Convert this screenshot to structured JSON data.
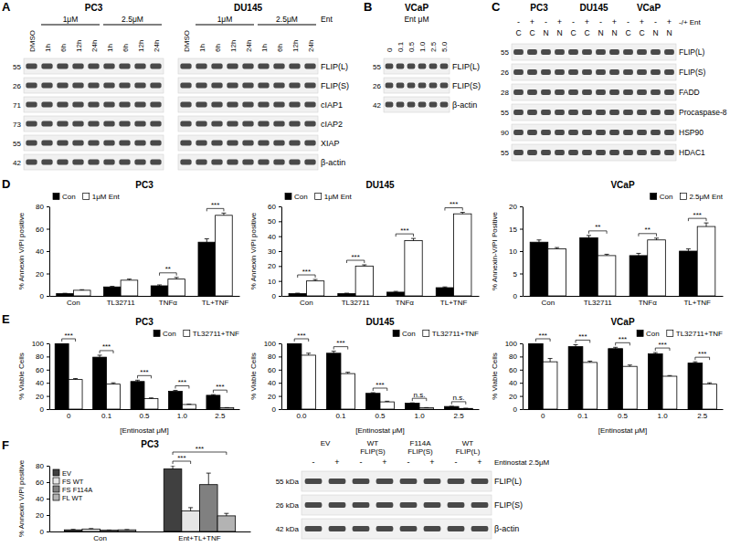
{
  "figure": {
    "panel_labels": [
      "A",
      "B",
      "C",
      "D",
      "E",
      "F"
    ]
  },
  "blots": [
    {
      "treatment": "Ent",
      "cell_lines": [
        {
          "title": "PC3",
          "concentrations": [
            "1μM",
            "2.5μM"
          ],
          "lanes": [
            "DMSO",
            "1h",
            "6h",
            "12h",
            "24h",
            "1h",
            "6h",
            "12h",
            "24h"
          ]
        },
        {
          "title": "DU145",
          "concentrations": [
            "1μM",
            "2.5μM"
          ],
          "lanes": [
            "DMSO",
            "1h",
            "6h",
            "12h",
            "24h",
            "1h",
            "6h",
            "12h",
            "24h"
          ]
        }
      ],
      "rows": [
        "FLIP(L)",
        "FLIP(S)",
        "cIAP1",
        "cIAP2",
        "XIAP",
        "β-actin"
      ],
      "mw": [
        55,
        26,
        71,
        73,
        55,
        42
      ]
    },
    {
      "title": "VCaP",
      "header": "Ent μM",
      "lanes": [
        "0",
        "0.1",
        "0.5",
        "1.0",
        "2.5",
        "5.0"
      ],
      "rows": [
        "FLIP(L)",
        "FLIP(S)",
        "β-actin"
      ],
      "mw": [
        55,
        26,
        42
      ]
    },
    {
      "cell_lines": [
        "PC3",
        "DU145",
        "VCaP"
      ],
      "treatment": [
        "-",
        "+",
        "-",
        "+"
      ],
      "fraction": [
        "C",
        "C",
        "N",
        "N"
      ],
      "treatment_label": "-/+ Ent",
      "rows": [
        "FLIP(L)",
        "FLIP(S)",
        "FADD",
        "Procaspase-8",
        "HSP90",
        "HDAC1"
      ],
      "mw": [
        55,
        26,
        28,
        55,
        90,
        55
      ]
    },
    {
      "groups": [
        [
          "EV"
        ],
        [
          "WT",
          "FLIP(S)"
        ],
        [
          "F114A",
          "FLIP(S)"
        ],
        [
          "WT",
          "FLIP(L)"
        ]
      ],
      "treatment": [
        "-",
        "+"
      ],
      "treatment_label": "Entinostat 2.5μM",
      "rows": [
        "FLIP(L)",
        "FLIP(S)",
        "β-actin"
      ],
      "mw": [
        "55 kDa",
        "26 kDa",
        "42 kDa"
      ]
    }
  ],
  "chart_data": [
    {
      "type": "bar",
      "title": "PC3",
      "y_label": "% Annexin V/PI positive",
      "categories": [
        "Con",
        "TL32711",
        "TNFα",
        "TL+TNF"
      ],
      "series": [
        {
          "name": "Con",
          "color": "#000000",
          "values": [
            2,
            8,
            9,
            48
          ],
          "errors": [
            0.3,
            0.5,
            0.8,
            3
          ]
        },
        {
          "name": "1μM Ent",
          "color": "#ffffff",
          "values": [
            5,
            14,
            15,
            72
          ],
          "errors": [
            0.5,
            1,
            1.5,
            2
          ]
        }
      ],
      "significance": [
        null,
        null,
        "**",
        "***"
      ],
      "ylim": [
        0,
        80
      ],
      "yticks": [
        0,
        20,
        40,
        60,
        80
      ],
      "legend": "top-left"
    },
    {
      "type": "bar",
      "title": "DU145",
      "y_label": "% Annexin V/PI positive",
      "categories": [
        "Con",
        "TL32711",
        "TNFα",
        "TL+TNF"
      ],
      "series": [
        {
          "name": "Con",
          "color": "#000000",
          "values": [
            1.5,
            1.5,
            2.5,
            5.5
          ],
          "errors": [
            0.3,
            0.3,
            0.5,
            0.5
          ]
        },
        {
          "name": "1μM Ent",
          "color": "#ffffff",
          "values": [
            10,
            20,
            37,
            55
          ],
          "errors": [
            1,
            0.8,
            1.5,
            1
          ]
        }
      ],
      "significance": [
        "***",
        "***",
        "***",
        "***"
      ],
      "ylim": [
        0,
        60
      ],
      "yticks": [
        0,
        10,
        20,
        30,
        40,
        50,
        60
      ],
      "legend": "top-left"
    },
    {
      "type": "bar",
      "title": "VCaP",
      "y_label": "% Annexin-V/PI Positive",
      "categories": [
        "Con",
        "TL32711",
        "TNFα",
        "TL+TNF"
      ],
      "series": [
        {
          "name": "Con",
          "color": "#000000",
          "values": [
            12,
            13,
            9,
            10
          ],
          "errors": [
            0.5,
            0.5,
            0.5,
            0.5
          ]
        },
        {
          "name": "2.5μM Ent",
          "color": "#ffffff",
          "values": [
            10.5,
            9,
            12.5,
            15.5
          ],
          "errors": [
            0.3,
            0.3,
            0.4,
            0.8
          ]
        }
      ],
      "significance": [
        null,
        "**",
        "**",
        "***"
      ],
      "ylim": [
        0,
        20
      ],
      "yticks": [
        0,
        5,
        10,
        15,
        20
      ],
      "legend": "top-right"
    },
    {
      "type": "bar",
      "title": "PC3",
      "y_label": "% Viable Cells",
      "x_label": "[Entinostat μM]",
      "categories": [
        "0",
        "0.1",
        "0.5",
        "1.0",
        "2.5"
      ],
      "series": [
        {
          "name": "Con",
          "color": "#000000",
          "values": [
            100,
            79,
            42,
            27,
            21
          ],
          "errors": [
            0,
            3,
            2,
            1.5,
            1
          ]
        },
        {
          "name": "TL32711+TNF",
          "color": "#ffffff",
          "values": [
            45,
            38,
            16,
            7,
            2
          ],
          "errors": [
            1.5,
            2,
            1,
            0.5,
            0.3
          ]
        }
      ],
      "significance": [
        "***",
        "***",
        "***",
        "***",
        "***"
      ],
      "ylim": [
        0,
        100
      ],
      "yticks": [
        0,
        20,
        40,
        60,
        80,
        100
      ],
      "legend": "top-right"
    },
    {
      "type": "bar",
      "title": "DU145",
      "y_label": "% Viable Cells",
      "x_label": "[Entinostat μM]",
      "categories": [
        "0.0",
        "0.1",
        "0.5",
        "1.0",
        "2.5"
      ],
      "series": [
        {
          "name": "Con",
          "color": "#000000",
          "values": [
            100,
            85,
            24,
            9,
            4
          ],
          "errors": [
            0,
            3,
            1,
            0.5,
            0.3
          ]
        },
        {
          "name": "TL32711+TNF",
          "color": "#ffffff",
          "values": [
            82,
            54,
            11,
            2,
            1
          ],
          "errors": [
            3,
            2,
            1,
            0.3,
            0.3
          ]
        }
      ],
      "significance": [
        "***",
        "***",
        "***",
        "n.s.",
        "n.s."
      ],
      "ylim": [
        0,
        100
      ],
      "yticks": [
        0,
        20,
        40,
        60,
        80,
        100
      ],
      "legend": "top-right"
    },
    {
      "type": "bar",
      "title": "VCaP",
      "y_label": "% Viable Cells",
      "x_label": "[Entinostat μM]",
      "categories": [
        "0",
        "0.1",
        "0.5",
        "1.0",
        "2.5"
      ],
      "series": [
        {
          "name": "Con",
          "color": "#000000",
          "values": [
            100,
            95,
            92,
            84,
            70
          ],
          "errors": [
            0,
            3,
            2,
            2,
            2
          ]
        },
        {
          "name": "TL32711+TNF",
          "color": "#ffffff",
          "values": [
            72,
            71,
            65,
            50,
            38
          ],
          "errors": [
            5,
            2,
            2,
            1,
            2
          ]
        }
      ],
      "significance": [
        "***",
        "***",
        "***",
        "***",
        "***"
      ],
      "ylim": [
        0,
        100
      ],
      "yticks": [
        0,
        20,
        40,
        60,
        80,
        100
      ],
      "legend": "top-right"
    },
    {
      "type": "bar",
      "title": "PC3",
      "y_label": "% Annexin V/PI positive",
      "categories": [
        "Con",
        "Ent+TL+TNF"
      ],
      "series": [
        {
          "name": "EV",
          "color": "#404040",
          "values": [
            2,
            76
          ],
          "errors": [
            0.5,
            4
          ]
        },
        {
          "name": "FS WT",
          "color": "#e6e6e6",
          "values": [
            3,
            25
          ],
          "errors": [
            0.5,
            4
          ]
        },
        {
          "name": "FS F114A",
          "color": "#808080",
          "values": [
            1.5,
            57
          ],
          "errors": [
            0.3,
            14
          ]
        },
        {
          "name": "FL WT",
          "color": "#b3b3b3",
          "values": [
            2,
            19
          ],
          "errors": [
            0.3,
            3
          ]
        }
      ],
      "brackets": [
        {
          "category": "Ent+TL+TNF",
          "from": "EV",
          "to": "FS WT",
          "text": "***"
        },
        {
          "category": "Ent+TL+TNF",
          "from": "EV",
          "to": "FL WT",
          "text": "***"
        }
      ],
      "ylim": [
        0,
        80
      ],
      "yticks": [
        0,
        20,
        40,
        60,
        80
      ],
      "legend": "top-left"
    }
  ]
}
